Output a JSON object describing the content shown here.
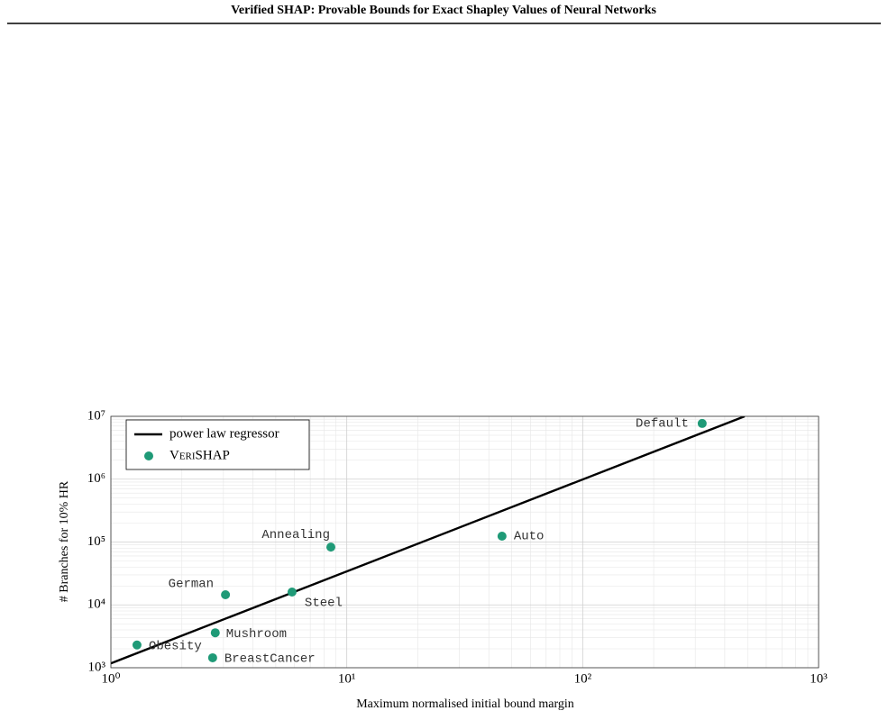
{
  "header": "Verified SHAP: Provable Bounds for Exact Shapley Values of Neural Networks",
  "chart_data": {
    "type": "scatter",
    "xlabel": "Maximum normalised initial bound margin",
    "ylabel": "# Branches for 10% HR",
    "xscale": "log",
    "yscale": "log",
    "grid": true,
    "legend": "upper left",
    "xlim": [
      1,
      1000
    ],
    "ylim": [
      1000,
      10000000
    ],
    "xticks": [
      {
        "value": 1,
        "label": "10⁰"
      },
      {
        "value": 10,
        "label": "10¹"
      },
      {
        "value": 100,
        "label": "10²"
      },
      {
        "value": 1000,
        "label": "10³"
      }
    ],
    "yticks": [
      {
        "value": 1000,
        "label": "10³"
      },
      {
        "value": 10000,
        "label": "10⁴"
      },
      {
        "value": 100000,
        "label": "10⁵"
      },
      {
        "value": 1000000,
        "label": "10⁶"
      },
      {
        "value": 10000000,
        "label": "10⁷"
      }
    ],
    "series": [
      {
        "name": "power law regressor",
        "type": "line",
        "color": "#000000",
        "x": [
          1,
          486
        ],
        "values": [
          1175,
          10000000
        ]
      },
      {
        "name": "VeriSHAP",
        "type": "scatter",
        "color": "#1f9a77",
        "labels": [
          "Obesity",
          "BreastCancer",
          "Mushroom",
          "German",
          "Steel",
          "Annealing",
          "Auto",
          "Default"
        ],
        "x": [
          1.29,
          2.7,
          2.77,
          3.06,
          5.86,
          8.56,
          45.5,
          321
        ],
        "values": [
          2300,
          1440,
          3600,
          14500,
          16000,
          83000,
          124000,
          7700000
        ]
      }
    ]
  }
}
